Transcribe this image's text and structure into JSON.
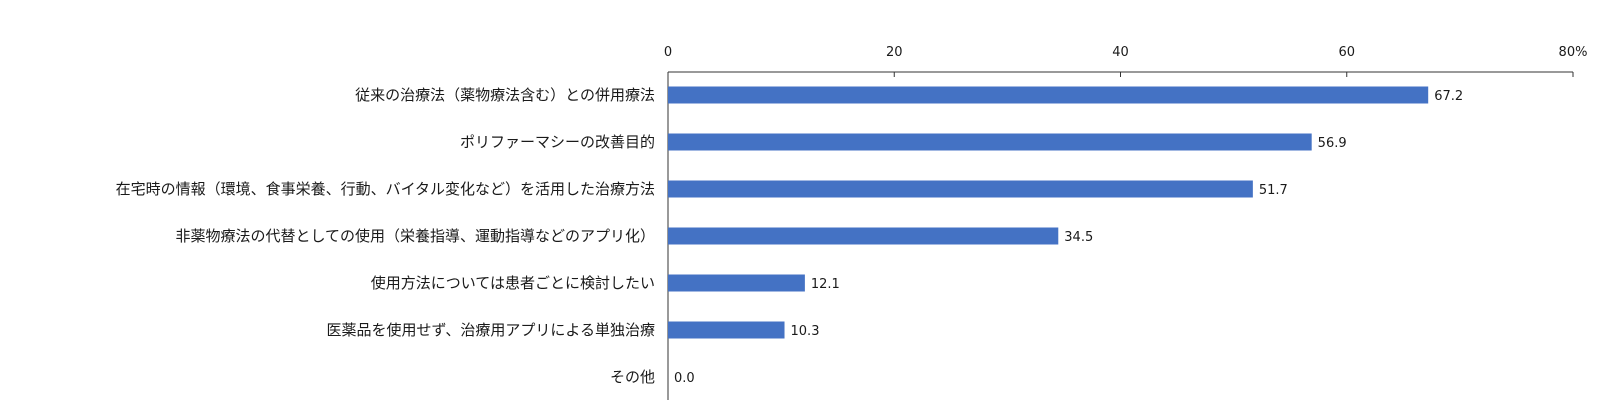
{
  "chart_data": {
    "type": "bar",
    "orientation": "horizontal",
    "categories": [
      "従来の治療法（薬物療法含む）との併用療法",
      "ポリファーマシーの改善目的",
      "在宅時の情報（環境、食事栄養、行動、バイタル変化など）を活用した治療方法",
      "非薬物療法の代替としての使用（栄養指導、運動指導などのアプリ化）",
      "使用方法については患者ごとに検討したい",
      "医薬品を使用せず、治療用アプリによる単独治療",
      "その他"
    ],
    "values": [
      67.2,
      56.9,
      51.7,
      34.5,
      12.1,
      10.3,
      0.0
    ],
    "value_labels": [
      "67.2",
      "56.9",
      "51.7",
      "34.5",
      "12.1",
      "10.3",
      "0.0"
    ],
    "xlim": [
      0,
      80
    ],
    "ticks": [
      0,
      20,
      40,
      60,
      80
    ],
    "tick_labels": [
      "0",
      "20",
      "40",
      "60",
      "80%"
    ],
    "axis_position": "top",
    "grid": false,
    "bar_color": "#4472C4"
  }
}
